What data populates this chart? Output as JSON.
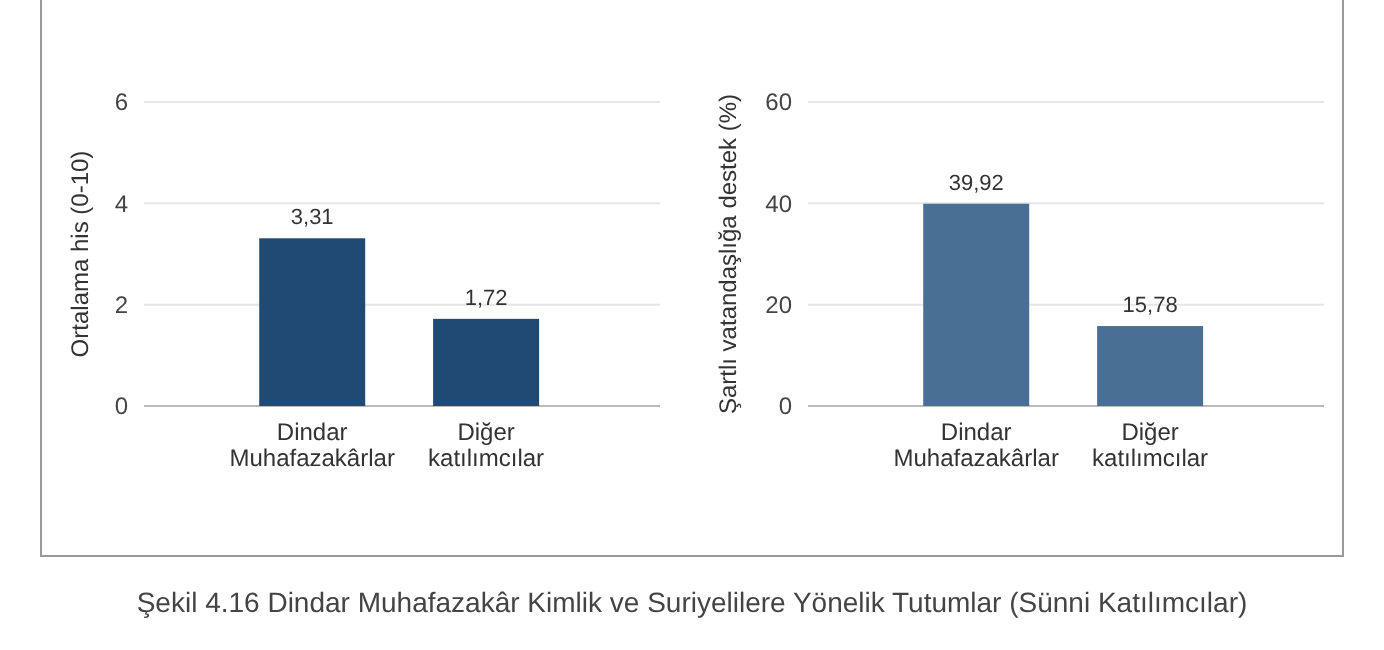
{
  "chart_data": [
    {
      "type": "bar",
      "ylabel": "Ortalama his (0-10)",
      "categories": [
        "Dindar Muhafazakârlar",
        "Diğer katılımcılar"
      ],
      "values": [
        3.31,
        1.72
      ],
      "value_labels": [
        "3,31",
        "1,72"
      ],
      "color": "#204a74",
      "ylim": [
        0,
        6
      ],
      "yticks": [
        0,
        2,
        4,
        6
      ],
      "grid": "y",
      "annotations": [
        "Şekil 4.16 Dindar Muhafazakâr Kimlik ve Suriyelilere Yönelik Tutumlar (Sünni Katılımcılar)"
      ]
    },
    {
      "type": "bar",
      "ylabel": "Şartlı vatandaşlığa destek (%)",
      "categories": [
        "Dindar Muhafazakârlar",
        "Diğer katılımcılar"
      ],
      "values": [
        39.92,
        15.78
      ],
      "value_labels": [
        "39,92",
        "15,78"
      ],
      "color": "#4a6f94",
      "ylim": [
        0,
        60
      ],
      "yticks": [
        0,
        20,
        40,
        60
      ],
      "grid": "y"
    }
  ]
}
